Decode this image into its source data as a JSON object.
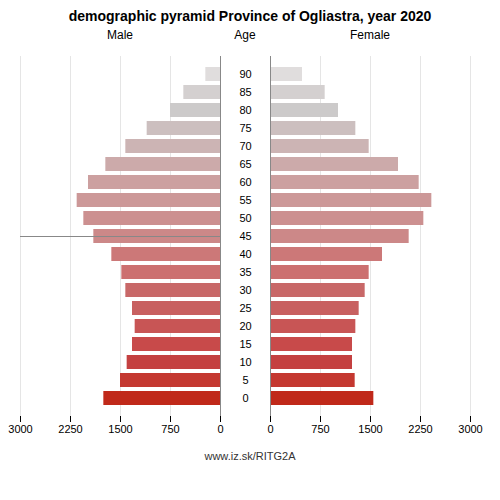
{
  "chart_data": {
    "type": "bar",
    "orientation": "horizontal",
    "title": "demographic pyramid Province of Ogliastra, year 2020",
    "ylabel": "Age",
    "annotations": [
      "www.iz.sk/RITG2A"
    ],
    "categories": [
      "0",
      "5",
      "10",
      "15",
      "20",
      "25",
      "30",
      "35",
      "40",
      "45",
      "50",
      "55",
      "60",
      "65",
      "70",
      "75",
      "80",
      "85",
      "90"
    ],
    "series": [
      {
        "name": "Male",
        "values": [
          1750,
          1500,
          1400,
          1320,
          1280,
          1320,
          1420,
          1480,
          1630,
          1900,
          2050,
          2150,
          1980,
          1720,
          1420,
          1100,
          750,
          550,
          220
        ]
      },
      {
        "name": "Female",
        "values": [
          1550,
          1270,
          1230,
          1230,
          1280,
          1330,
          1420,
          1480,
          1680,
          2080,
          2300,
          2420,
          2230,
          1920,
          1480,
          1280,
          1020,
          820,
          480
        ]
      }
    ],
    "colors": [
      "#c0291a",
      "#c43830",
      "#c44040",
      "#c84a4a",
      "#c85555",
      "#c86060",
      "#c86868",
      "#cc7070",
      "#cc7878",
      "#cc8888",
      "#cc9090",
      "#cc9898",
      "#cca0a0",
      "#ccaaaa",
      "#ccb4b4",
      "#ccbfbf",
      "#cccaca",
      "#d4d0d0",
      "#e0dddd"
    ],
    "xlim": [
      0,
      3000
    ],
    "xticks": [
      0,
      750,
      1500,
      2250,
      3000
    ],
    "grid": true
  }
}
